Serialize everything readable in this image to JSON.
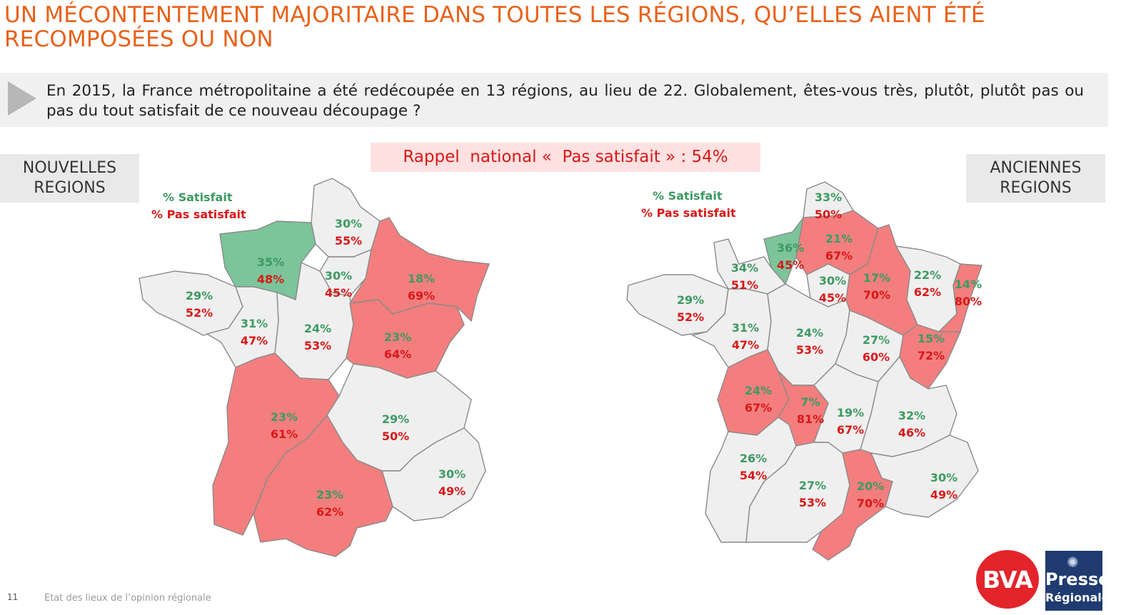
{
  "title": "UN MÉCONTENTEMENT MAJORITAIRE DANS TOUTES LES RÉGIONS, QU’ELLES AIENT ÉTÉ RECOMPOSÉES OU NON",
  "question": "En 2015, la France métropolitaine a été redécoupée en 13 régions, au lieu de 22. Globalement, êtes-vous très, plutôt, plutôt pas ou pas du tout satisfait de ce nouveau découpage ?",
  "rappel": "Rappel  national «  Pas satisfait » : 54%",
  "labels": {
    "nouvelles": "NOUVELLES\nREGIONS",
    "anciennes": "ANCIENNES\nREGIONS"
  },
  "legend": {
    "satisfait": "% Satisfait",
    "pas_satisfait": "% Pas satisfait"
  },
  "colors": {
    "title": "#e8611a",
    "satisfait_text": "#3d9a62",
    "pas_satisfait_text": "#d81818",
    "fill_majority_unsatisfied": "#f47e7e",
    "fill_satisfied_highlight": "#7cc49a",
    "fill_neutral": "#efefef"
  },
  "new_regions": [
    {
      "satisfait": "35%",
      "pas_satisfait": "48%",
      "highlight": "satisfied"
    },
    {
      "satisfait": "30%",
      "pas_satisfait": "55%",
      "highlight": "none"
    },
    {
      "satisfait": "18%",
      "pas_satisfait": "69%",
      "highlight": "unsatisfied"
    },
    {
      "satisfait": "30%",
      "pas_satisfait": "45%",
      "highlight": "none"
    },
    {
      "satisfait": "29%",
      "pas_satisfait": "52%",
      "highlight": "none"
    },
    {
      "satisfait": "31%",
      "pas_satisfait": "47%",
      "highlight": "none"
    },
    {
      "satisfait": "24%",
      "pas_satisfait": "53%",
      "highlight": "none"
    },
    {
      "satisfait": "23%",
      "pas_satisfait": "64%",
      "highlight": "unsatisfied"
    },
    {
      "satisfait": "23%",
      "pas_satisfait": "61%",
      "highlight": "unsatisfied"
    },
    {
      "satisfait": "29%",
      "pas_satisfait": "50%",
      "highlight": "none"
    },
    {
      "satisfait": "30%",
      "pas_satisfait": "49%",
      "highlight": "none"
    },
    {
      "satisfait": "23%",
      "pas_satisfait": "62%",
      "highlight": "unsatisfied"
    }
  ],
  "old_regions": [
    {
      "satisfait": "33%",
      "pas_satisfait": "50%",
      "highlight": "none"
    },
    {
      "satisfait": "21%",
      "pas_satisfait": "67%",
      "highlight": "unsatisfied"
    },
    {
      "satisfait": "36%",
      "pas_satisfait": "45%",
      "highlight": "satisfied"
    },
    {
      "satisfait": "34%",
      "pas_satisfait": "51%",
      "highlight": "none"
    },
    {
      "satisfait": "30%",
      "pas_satisfait": "45%",
      "highlight": "none"
    },
    {
      "satisfait": "17%",
      "pas_satisfait": "70%",
      "highlight": "unsatisfied"
    },
    {
      "satisfait": "22%",
      "pas_satisfait": "62%",
      "highlight": "none"
    },
    {
      "satisfait": "14%",
      "pas_satisfait": "80%",
      "highlight": "unsatisfied"
    },
    {
      "satisfait": "29%",
      "pas_satisfait": "52%",
      "highlight": "none"
    },
    {
      "satisfait": "31%",
      "pas_satisfait": "47%",
      "highlight": "none"
    },
    {
      "satisfait": "24%",
      "pas_satisfait": "53%",
      "highlight": "none"
    },
    {
      "satisfait": "27%",
      "pas_satisfait": "60%",
      "highlight": "none"
    },
    {
      "satisfait": "15%",
      "pas_satisfait": "72%",
      "highlight": "unsatisfied"
    },
    {
      "satisfait": "24%",
      "pas_satisfait": "67%",
      "highlight": "unsatisfied"
    },
    {
      "satisfait": "7%",
      "pas_satisfait": "81%",
      "highlight": "unsatisfied"
    },
    {
      "satisfait": "19%",
      "pas_satisfait": "67%",
      "highlight": "none"
    },
    {
      "satisfait": "32%",
      "pas_satisfait": "46%",
      "highlight": "none"
    },
    {
      "satisfait": "26%",
      "pas_satisfait": "54%",
      "highlight": "none"
    },
    {
      "satisfait": "27%",
      "pas_satisfait": "53%",
      "highlight": "none"
    },
    {
      "satisfait": "20%",
      "pas_satisfait": "70%",
      "highlight": "unsatisfied"
    },
    {
      "satisfait": "30%",
      "pas_satisfait": "49%",
      "highlight": "none"
    }
  ],
  "footer": {
    "page": "11",
    "text": "Etat des lieux de l’opinion régionale"
  },
  "logos": {
    "bva": "BVA",
    "presse_line1": "Presse",
    "presse_line2": "Régionale"
  }
}
